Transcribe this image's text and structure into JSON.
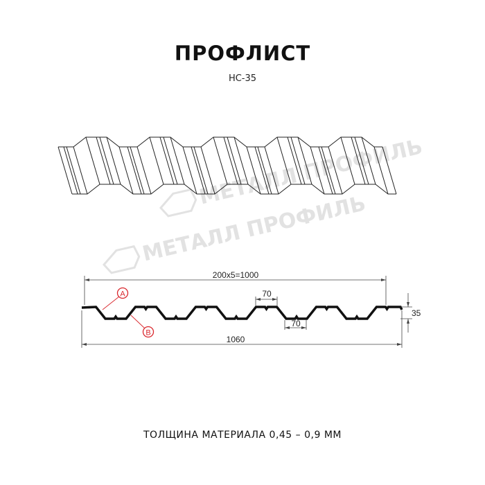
{
  "header": {
    "title": "ПРОФЛИСТ",
    "model": "НС-35"
  },
  "watermark": {
    "text": "МЕТАЛЛ ПРОФИЛЬ"
  },
  "drawing": {
    "overall_span_label": "200x5=1000",
    "top_flat_label": "70",
    "bottom_flat_label": "70",
    "height_label": "35",
    "total_width_label": "1060",
    "marker_a": "A",
    "marker_b": "B",
    "marker_color": "#d9262c"
  },
  "footer": {
    "thickness": "ТОЛЩИНА МАТЕРИАЛА 0,45 – 0,9 ММ"
  }
}
